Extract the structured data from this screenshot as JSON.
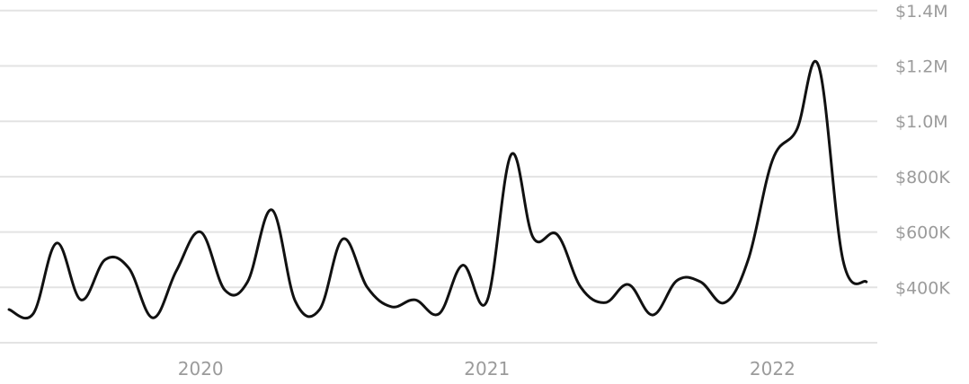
{
  "chart_data": {
    "type": "line",
    "title": "",
    "xlabel": "",
    "ylabel": "",
    "grid": true,
    "legend": "none",
    "y_axis_position": "right",
    "ylim": [
      200000,
      1400000
    ],
    "xlim": [
      "2019-05-01",
      "2022-05-15"
    ],
    "yticks": [
      {
        "value": 400000,
        "label": "$400K"
      },
      {
        "value": 600000,
        "label": "$600K"
      },
      {
        "value": 800000,
        "label": "$800K"
      },
      {
        "value": 1000000,
        "label": "$1.0M"
      },
      {
        "value": 1200000,
        "label": "$1.2M"
      },
      {
        "value": 1400000,
        "label": "$1.4M"
      }
    ],
    "xticks": [
      {
        "value": "2020-01-01",
        "label": "2020"
      },
      {
        "value": "2021-01-01",
        "label": "2021"
      },
      {
        "value": "2022-01-01",
        "label": "2022"
      }
    ],
    "colors": {
      "line": "#111111",
      "grid": "#e3e3e3",
      "tick_text": "#9b9b9b"
    },
    "series": [
      {
        "x": [
          "2019-05-01",
          "2019-06-01",
          "2019-07-01",
          "2019-08-01",
          "2019-09-01",
          "2019-10-01",
          "2019-11-01",
          "2019-12-01",
          "2020-01-01",
          "2020-02-01",
          "2020-03-01",
          "2020-04-01",
          "2020-05-01",
          "2020-06-01",
          "2020-07-01",
          "2020-08-01",
          "2020-09-01",
          "2020-10-01",
          "2020-11-01",
          "2020-12-01",
          "2021-01-01",
          "2021-02-01",
          "2021-03-01",
          "2021-04-01",
          "2021-05-01",
          "2021-06-01",
          "2021-07-01",
          "2021-08-01",
          "2021-09-01",
          "2021-10-01",
          "2021-11-01",
          "2021-12-01",
          "2022-01-01",
          "2022-02-01",
          "2022-03-01",
          "2022-04-01",
          "2022-05-01"
        ],
        "values": [
          320000,
          305000,
          560000,
          355000,
          500000,
          470000,
          290000,
          460000,
          600000,
          390000,
          420000,
          680000,
          350000,
          320000,
          575000,
          400000,
          330000,
          355000,
          305000,
          480000,
          350000,
          880000,
          580000,
          590000,
          400000,
          345000,
          410000,
          300000,
          425000,
          420000,
          345000,
          500000,
          860000,
          970000,
          1200000,
          500000,
          420000
        ]
      }
    ]
  }
}
